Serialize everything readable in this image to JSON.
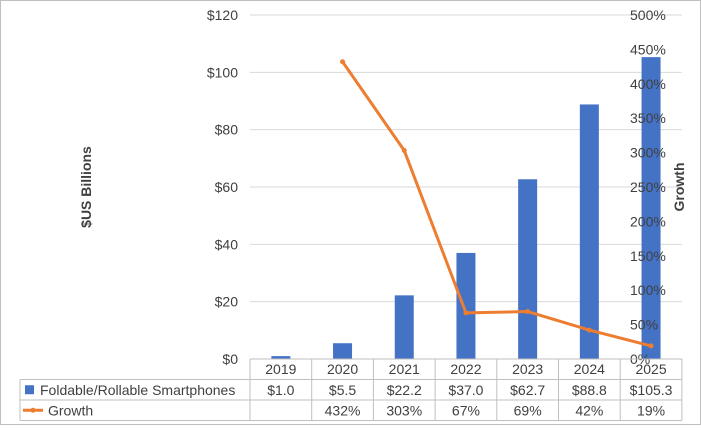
{
  "chart_data": {
    "type": "bar",
    "categories": [
      "2019",
      "2020",
      "2021",
      "2022",
      "2023",
      "2024",
      "2025"
    ],
    "series": [
      {
        "name": "Foldable/Rollable Smartphones",
        "type": "bar",
        "axis": "left",
        "color": "#4472C4",
        "values": [
          1.0,
          5.5,
          22.2,
          37.0,
          62.7,
          88.8,
          105.3
        ],
        "labels": [
          "$1.0",
          "$5.5",
          "$22.2",
          "$37.0",
          "$62.7",
          "$88.8",
          "$105.3"
        ]
      },
      {
        "name": "Growth",
        "type": "line",
        "axis": "right",
        "color": "#ED7D31",
        "values": [
          null,
          432,
          303,
          67,
          69,
          42,
          19
        ],
        "labels": [
          "",
          "432%",
          "303%",
          "67%",
          "69%",
          "42%",
          "19%"
        ]
      }
    ],
    "ylabel": "$US Billions",
    "ylabel_right": "Growth",
    "ylim": [
      0,
      120
    ],
    "ylim_right": [
      0,
      500
    ],
    "yticks": [
      "$0",
      "$20",
      "$40",
      "$60",
      "$80",
      "$100",
      "$120"
    ],
    "yticks_right": [
      "0%",
      "50%",
      "100%",
      "150%",
      "200%",
      "250%",
      "300%",
      "350%",
      "400%",
      "450%",
      "500%"
    ],
    "grid": true,
    "legend": "data-table-below"
  }
}
